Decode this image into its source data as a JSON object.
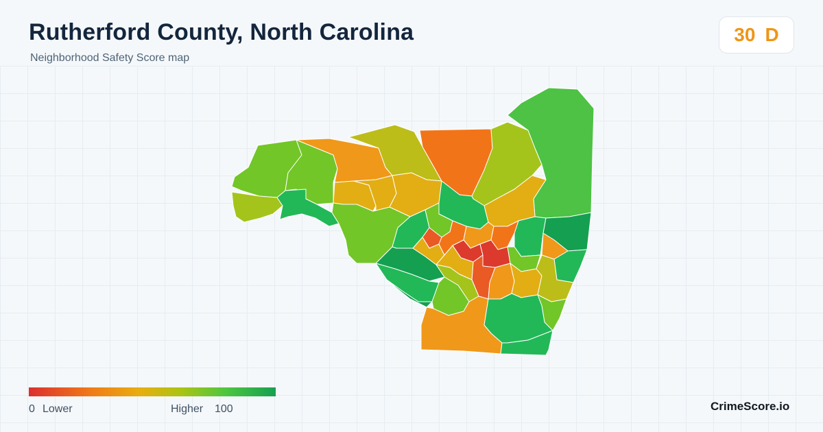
{
  "header": {
    "title": "Rutherford County, North Carolina",
    "subtitle": "Neighborhood Safety Score map"
  },
  "score_badge": {
    "score": "30",
    "grade": "D",
    "color": "#ef9516"
  },
  "legend": {
    "min_value": "0",
    "min_label": "Lower",
    "max_label": "Higher",
    "max_value": "100",
    "color_low": "#dc2f2f",
    "color_mid": "#e8ae10",
    "color_high": "#16a050"
  },
  "brand": "CrimeScore.io",
  "map": {
    "palette": {
      "red": "#dc3a2c",
      "red_orange": "#ea5a24",
      "orange": "#f27418",
      "amber": "#f0981a",
      "gold": "#e2ae14",
      "yellow_olive": "#bcbd18",
      "yellow_green": "#a4c41c",
      "lime": "#72c628",
      "green": "#4dc244",
      "emerald": "#22b858",
      "dark_green": "#14a050"
    }
  }
}
